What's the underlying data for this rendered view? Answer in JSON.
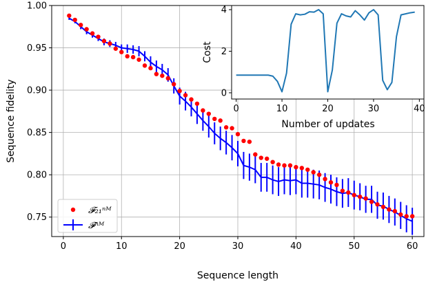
{
  "chart_data": [
    {
      "type": "scatter+errorbar-line",
      "xlabel": "Sequence length",
      "ylabel": "Sequence fidelity",
      "xlim": [
        -2,
        62
      ],
      "ylim": [
        0.727,
        1.0
      ],
      "xticks": [
        0,
        10,
        20,
        30,
        40,
        50,
        60
      ],
      "yticks": [
        0.75,
        0.8,
        0.85,
        0.9,
        0.95,
        1.0
      ],
      "ytick_labels": [
        "0.75",
        "0.80",
        "0.85",
        "0.90",
        "0.95",
        "1.00"
      ],
      "grid": true,
      "legend_position": "lower-left",
      "series": [
        {
          "name": "𝓕₂₁ⁿᴹ",
          "kind": "scatter",
          "color": "#ff0000",
          "x": [
            1,
            2,
            3,
            4,
            5,
            6,
            7,
            8,
            9,
            10,
            11,
            12,
            13,
            14,
            15,
            16,
            17,
            18,
            19,
            20,
            21,
            22,
            23,
            24,
            25,
            26,
            27,
            28,
            29,
            30,
            31,
            32,
            33,
            34,
            35,
            36,
            37,
            38,
            39,
            40,
            41,
            42,
            43,
            44,
            45,
            46,
            47,
            48,
            49,
            50,
            51,
            52,
            53,
            54,
            55,
            56,
            57,
            58,
            59,
            60
          ],
          "values": [
            0.988,
            0.983,
            0.977,
            0.972,
            0.967,
            0.963,
            0.958,
            0.955,
            0.949,
            0.945,
            0.94,
            0.939,
            0.936,
            0.929,
            0.926,
            0.919,
            0.917,
            0.914,
            0.907,
            0.899,
            0.894,
            0.889,
            0.884,
            0.876,
            0.872,
            0.866,
            0.864,
            0.856,
            0.855,
            0.848,
            0.84,
            0.839,
            0.824,
            0.82,
            0.819,
            0.815,
            0.812,
            0.811,
            0.811,
            0.809,
            0.808,
            0.806,
            0.803,
            0.8,
            0.795,
            0.791,
            0.788,
            0.781,
            0.779,
            0.776,
            0.774,
            0.772,
            0.768,
            0.765,
            0.762,
            0.759,
            0.757,
            0.753,
            0.751,
            0.751
          ]
        },
        {
          "name": "𝓕ⁿᴹ",
          "kind": "line-errorbar",
          "color": "#0000ff",
          "x": [
            1,
            2,
            3,
            4,
            5,
            6,
            7,
            8,
            9,
            10,
            11,
            12,
            13,
            14,
            15,
            16,
            17,
            18,
            19,
            20,
            21,
            22,
            23,
            24,
            25,
            26,
            27,
            28,
            29,
            30,
            31,
            32,
            33,
            34,
            35,
            36,
            37,
            38,
            39,
            40,
            41,
            42,
            43,
            44,
            45,
            46,
            47,
            48,
            49,
            50,
            51,
            52,
            53,
            54,
            55,
            56,
            57,
            58,
            59,
            60
          ],
          "values": [
            0.985,
            0.981,
            0.975,
            0.969,
            0.965,
            0.961,
            0.957,
            0.955,
            0.953,
            0.95,
            0.949,
            0.948,
            0.946,
            0.94,
            0.933,
            0.928,
            0.924,
            0.918,
            0.905,
            0.893,
            0.887,
            0.88,
            0.872,
            0.864,
            0.857,
            0.849,
            0.843,
            0.838,
            0.832,
            0.825,
            0.811,
            0.809,
            0.806,
            0.797,
            0.797,
            0.794,
            0.792,
            0.794,
            0.793,
            0.794,
            0.79,
            0.79,
            0.789,
            0.788,
            0.785,
            0.783,
            0.78,
            0.778,
            0.779,
            0.776,
            0.774,
            0.771,
            0.771,
            0.764,
            0.763,
            0.759,
            0.756,
            0.752,
            0.748,
            0.745
          ],
          "errors": [
            0.002,
            0.002,
            0.003,
            0.003,
            0.003,
            0.003,
            0.004,
            0.004,
            0.004,
            0.004,
            0.005,
            0.005,
            0.006,
            0.006,
            0.007,
            0.007,
            0.007,
            0.008,
            0.009,
            0.01,
            0.011,
            0.011,
            0.012,
            0.012,
            0.013,
            0.013,
            0.014,
            0.014,
            0.015,
            0.015,
            0.016,
            0.016,
            0.016,
            0.017,
            0.017,
            0.017,
            0.017,
            0.017,
            0.017,
            0.017,
            0.017,
            0.017,
            0.017,
            0.017,
            0.017,
            0.017,
            0.017,
            0.017,
            0.017,
            0.017,
            0.016,
            0.016,
            0.016,
            0.016,
            0.016,
            0.016,
            0.016,
            0.016,
            0.016,
            0.016
          ]
        }
      ]
    },
    {
      "type": "line",
      "xlabel": "Number of updates",
      "ylabel": "Cost",
      "xlim": [
        -1,
        41
      ],
      "ylim": [
        -0.3,
        4.2
      ],
      "xticks": [
        0,
        10,
        20,
        30,
        40
      ],
      "yticks": [
        0,
        2,
        4
      ],
      "grid": false,
      "series": [
        {
          "color": "#1f77b4",
          "x": [
            0,
            1,
            2,
            3,
            4,
            5,
            6,
            7,
            8,
            9,
            10,
            11,
            12,
            13,
            14,
            15,
            16,
            17,
            18,
            19,
            20,
            21,
            22,
            23,
            24,
            25,
            26,
            27,
            28,
            29,
            30,
            31,
            32,
            33,
            34,
            35,
            36,
            37,
            38,
            39
          ],
          "values": [
            0.85,
            0.85,
            0.85,
            0.85,
            0.85,
            0.85,
            0.85,
            0.85,
            0.8,
            0.55,
            0.05,
            0.95,
            3.3,
            3.8,
            3.75,
            3.78,
            3.9,
            3.88,
            4.0,
            3.8,
            0.05,
            1.1,
            3.35,
            3.8,
            3.7,
            3.65,
            3.95,
            3.75,
            3.5,
            3.85,
            4.0,
            3.75,
            0.6,
            0.15,
            0.5,
            2.7,
            3.75,
            3.8,
            3.85,
            3.88
          ]
        }
      ]
    }
  ]
}
